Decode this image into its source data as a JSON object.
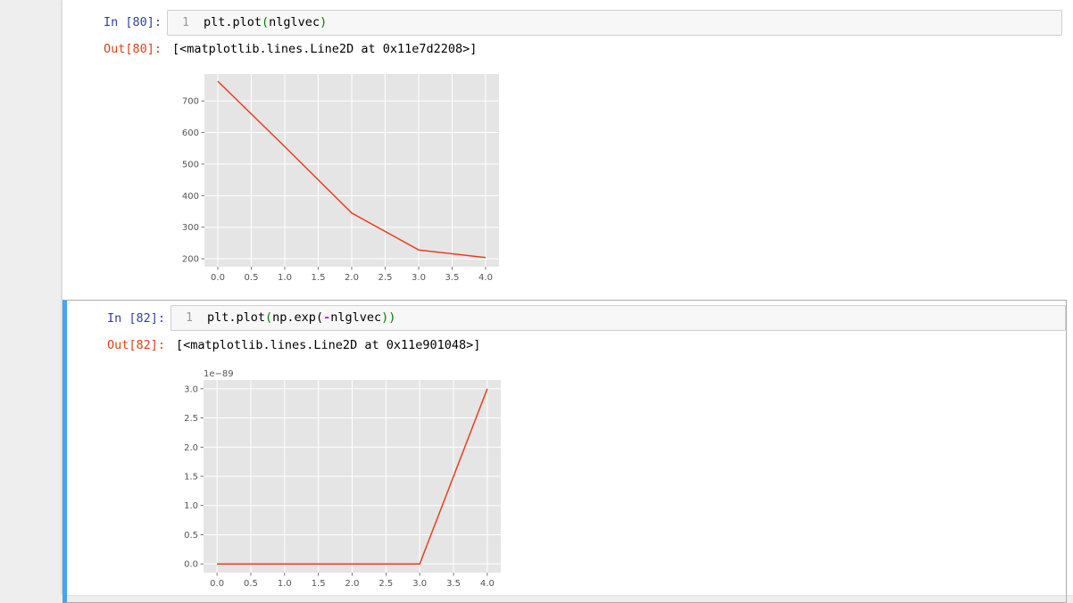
{
  "cells": [
    {
      "in_prompt": "In [80]:",
      "line_number": "1",
      "code": {
        "fn": "plt.plot",
        "open": "(",
        "arg": "nlglvec",
        "close": ")"
      },
      "out_prompt": "Out[80]:",
      "out_text": "[<matplotlib.lines.Line2D at 0x11e7d2208>]"
    },
    {
      "in_prompt": "In [82]:",
      "line_number": "1",
      "code": {
        "fn": "plt.plot",
        "open": "(",
        "inner": "np.exp(",
        "op": "-",
        "arg": "nlglvec",
        "close": "))"
      },
      "out_prompt": "Out[82]:",
      "out_text": "[<matplotlib.lines.Line2D at 0x11e901048>]"
    }
  ],
  "line_color": "#e8401f",
  "chart_data": [
    {
      "type": "line",
      "x": [
        0,
        1,
        2,
        3,
        4
      ],
      "y": [
        762,
        555,
        345,
        228,
        204
      ],
      "xlim": [
        -0.2,
        4.2
      ],
      "ylim": [
        175,
        785
      ],
      "xticks": [
        0,
        0.5,
        1,
        1.5,
        2,
        2.5,
        3,
        3.5,
        4
      ],
      "xtick_labels": [
        "0.0",
        "0.5",
        "1.0",
        "1.5",
        "2.0",
        "2.5",
        "3.0",
        "3.5",
        "4.0"
      ],
      "yticks": [
        200,
        300,
        400,
        500,
        600,
        700
      ],
      "ytick_labels": [
        "200",
        "300",
        "400",
        "500",
        "600",
        "700"
      ],
      "offset_label": "",
      "grid": true
    },
    {
      "type": "line",
      "x": [
        0,
        1,
        2,
        3,
        4
      ],
      "y": [
        0,
        0,
        0,
        0,
        3.0
      ],
      "xlim": [
        -0.2,
        4.2
      ],
      "ylim": [
        -0.15,
        3.15
      ],
      "xticks": [
        0,
        0.5,
        1,
        1.5,
        2,
        2.5,
        3,
        3.5,
        4
      ],
      "xtick_labels": [
        "0.0",
        "0.5",
        "1.0",
        "1.5",
        "2.0",
        "2.5",
        "3.0",
        "3.5",
        "4.0"
      ],
      "yticks": [
        0,
        0.5,
        1,
        1.5,
        2,
        2.5,
        3
      ],
      "ytick_labels": [
        "0.0",
        "0.5",
        "1.0",
        "1.5",
        "2.0",
        "2.5",
        "3.0"
      ],
      "offset_label": "1e−89",
      "grid": true
    }
  ]
}
